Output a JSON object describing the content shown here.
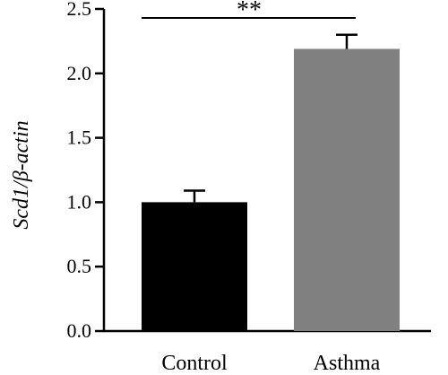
{
  "chart_data": {
    "type": "bar",
    "categories": [
      "Control",
      "Asthma"
    ],
    "values": [
      1.0,
      2.19
    ],
    "errors": [
      0.09,
      0.11
    ],
    "ylabel": "Scd1/β-actin",
    "ylim": [
      0,
      2.5
    ],
    "yticks": [
      0.0,
      0.5,
      1.0,
      1.5,
      2.0,
      2.5
    ],
    "ytick_labels": [
      "0.0",
      "0.5",
      "1.0",
      "1.5",
      "2.0",
      "2.5"
    ],
    "bar_colors": [
      "#000000",
      "#808080"
    ],
    "grid": false,
    "significance": {
      "label": "**",
      "between": [
        "Control",
        "Asthma"
      ]
    }
  }
}
